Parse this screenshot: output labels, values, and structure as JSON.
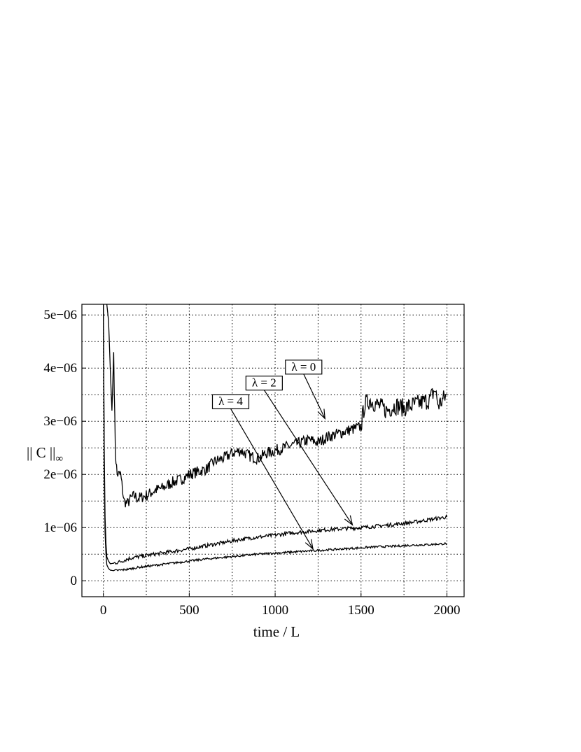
{
  "chart_data": {
    "type": "line",
    "xlabel": "time / L",
    "ylabel": "|| C ||∞",
    "ylabel_main": "|| C ||",
    "ylabel_sub": "∞",
    "xlim": [
      -125,
      2100
    ],
    "ylim": [
      -3e-07,
      5.2e-06
    ],
    "xticks": [
      0,
      500,
      1000,
      1500,
      2000
    ],
    "xtick_labels": [
      "0",
      "500",
      "1000",
      "1500",
      "2000"
    ],
    "yticks": [
      0,
      1e-06,
      2e-06,
      3e-06,
      4e-06,
      5e-06
    ],
    "ytick_labels": [
      "0",
      "1e−06",
      "2e−06",
      "3e−06",
      "4e−06",
      "5e−06"
    ],
    "minor_grid_y": [
      5e-07,
      1.5e-06,
      2.5e-06,
      3.5e-06,
      4.5e-06
    ],
    "grid": true,
    "series": [
      {
        "name": "λ = 0",
        "x": [
          0,
          10,
          20,
          30,
          40,
          50,
          60,
          70,
          80,
          100,
          120,
          140,
          160,
          180,
          200,
          250,
          300,
          350,
          400,
          450,
          500,
          550,
          600,
          650,
          700,
          750,
          800,
          850,
          900,
          950,
          1000,
          1050,
          1100,
          1150,
          1200,
          1250,
          1300,
          1350,
          1400,
          1450,
          1500,
          1520,
          1550,
          1600,
          1650,
          1700,
          1750,
          1800,
          1850,
          1900,
          1930,
          1950,
          2000
        ],
        "y": [
          5.5e-06,
          5.4e-06,
          5.2e-06,
          4.9e-06,
          4e-06,
          3.2e-06,
          4.3e-06,
          2.4e-06,
          2e-06,
          2e-06,
          1.5e-06,
          1.45e-06,
          1.55e-06,
          1.6e-06,
          1.55e-06,
          1.6e-06,
          1.7e-06,
          1.75e-06,
          1.85e-06,
          1.9e-06,
          2e-06,
          2.05e-06,
          2.1e-06,
          2.25e-06,
          2.3e-06,
          2.4e-06,
          2.45e-06,
          2.35e-06,
          2.3e-06,
          2.4e-06,
          2.45e-06,
          2.5e-06,
          2.55e-06,
          2.6e-06,
          2.65e-06,
          2.6e-06,
          2.7e-06,
          2.75e-06,
          2.8e-06,
          2.85e-06,
          2.9e-06,
          3.3e-06,
          3.4e-06,
          3.3e-06,
          3.2e-06,
          3.3e-06,
          3.25e-06,
          3.3e-06,
          3.35e-06,
          3.4e-06,
          3.6e-06,
          3.3e-06,
          3.5e-06
        ]
      },
      {
        "name": "λ = 2",
        "x": [
          0,
          5,
          10,
          15,
          20,
          30,
          40,
          60,
          100,
          150,
          200,
          300,
          400,
          500,
          600,
          700,
          800,
          900,
          1000,
          1100,
          1200,
          1300,
          1400,
          1500,
          1600,
          1700,
          1800,
          1900,
          2000
        ],
        "y": [
          5.2e-06,
          2.5e-06,
          1.2e-06,
          7e-07,
          4.5e-07,
          3.7e-07,
          3.2e-07,
          3.3e-07,
          3.6e-07,
          4.2e-07,
          4.5e-07,
          5e-07,
          5.5e-07,
          6e-07,
          6.6e-07,
          7.2e-07,
          7.8e-07,
          8.2e-07,
          8.6e-07,
          9e-07,
          9.3e-07,
          9.6e-07,
          9.8e-07,
          1e-06,
          1.03e-06,
          1.06e-06,
          1.1e-06,
          1.15e-06,
          1.2e-06
        ]
      },
      {
        "name": "λ = 4",
        "x": [
          0,
          5,
          10,
          15,
          20,
          30,
          40,
          60,
          100,
          150,
          200,
          300,
          400,
          500,
          600,
          700,
          800,
          900,
          1000,
          1100,
          1200,
          1300,
          1400,
          1500,
          1600,
          1700,
          1800,
          1900,
          2000
        ],
        "y": [
          5.2e-06,
          2e-06,
          9e-07,
          5e-07,
          3e-07,
          2.3e-07,
          2e-07,
          1.9e-07,
          2e-07,
          2.2e-07,
          2.5e-07,
          2.9e-07,
          3.3e-07,
          3.7e-07,
          4.1e-07,
          4.4e-07,
          4.7e-07,
          5e-07,
          5.2e-07,
          5.4e-07,
          5.6e-07,
          5.8e-07,
          6e-07,
          6.2e-07,
          6.4e-07,
          6.5e-07,
          6.7e-07,
          6.8e-07,
          7e-07
        ]
      }
    ],
    "annotations": [
      {
        "label": "λ = 0",
        "points_to_x": 1290,
        "points_to_y": 3.05e-06,
        "box_x": 1060,
        "box_y": 4.15e-06
      },
      {
        "label": "λ = 2",
        "points_to_x": 1450,
        "points_to_y": 1.05e-06,
        "box_x": 830,
        "box_y": 3.85e-06
      },
      {
        "label": "λ = 4",
        "points_to_x": 1220,
        "points_to_y": 6e-07,
        "box_x": 635,
        "box_y": 3.5e-06
      }
    ]
  }
}
